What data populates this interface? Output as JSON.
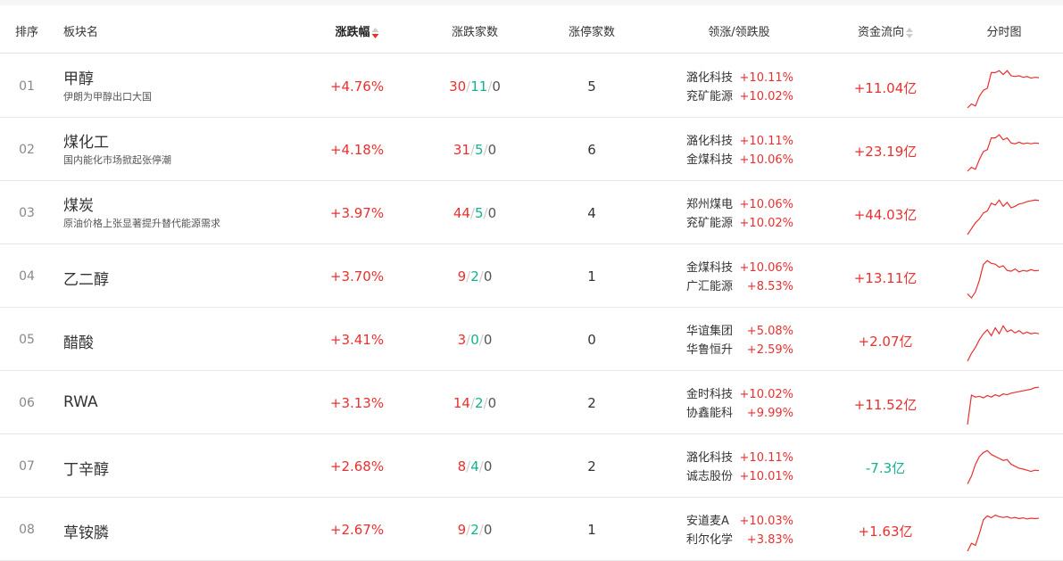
{
  "header": {
    "rank": "排序",
    "name": "板块名",
    "change": "涨跌幅",
    "updown": "涨跌家数",
    "limitup": "涨停家数",
    "leaders": "领涨/领跌股",
    "flow": "资金流向",
    "chart": "分时图"
  },
  "colors": {
    "up": "#e93030",
    "down": "#13b28f"
  },
  "rows": [
    {
      "rank": "01",
      "name": "甲醇",
      "desc": "伊朗为甲醇出口大国",
      "change": "+4.76%",
      "up": "30",
      "down": "11",
      "flat": "0",
      "limitup": "5",
      "leaders": [
        {
          "name": "潞化科技",
          "pct": "+10.11%"
        },
        {
          "name": "兖矿能源",
          "pct": "+10.02%"
        }
      ],
      "flow": "+11.04亿",
      "flow_dir": "up",
      "spark": [
        0,
        0.1,
        0.05,
        0.3,
        0.45,
        0.5,
        0.9,
        0.9,
        0.95,
        0.85,
        0.95,
        0.82,
        0.8,
        0.82,
        0.78,
        0.8,
        0.76,
        0.78,
        0.77
      ]
    },
    {
      "rank": "02",
      "name": "煤化工",
      "desc": "国内能化市场掀起张停潮",
      "change": "+4.18%",
      "up": "31",
      "down": "5",
      "flat": "0",
      "limitup": "6",
      "leaders": [
        {
          "name": "潞化科技",
          "pct": "+10.11%"
        },
        {
          "name": "金煤科技",
          "pct": "+10.06%"
        }
      ],
      "flow": "+23.19亿",
      "flow_dir": "up",
      "spark": [
        0,
        0.1,
        0.05,
        0.3,
        0.5,
        0.55,
        0.85,
        0.85,
        0.93,
        0.8,
        0.85,
        0.72,
        0.7,
        0.74,
        0.7,
        0.72,
        0.7,
        0.72,
        0.71
      ]
    },
    {
      "rank": "03",
      "name": "煤炭",
      "desc": "原油价格上张显著提升替代能源需求",
      "change": "+3.97%",
      "up": "44",
      "down": "5",
      "flat": "0",
      "limitup": "4",
      "leaders": [
        {
          "name": "郑州煤电",
          "pct": "+10.06%"
        },
        {
          "name": "兖矿能源",
          "pct": "+10.02%"
        }
      ],
      "flow": "+44.03亿",
      "flow_dir": "up",
      "spark": [
        0,
        0.15,
        0.3,
        0.4,
        0.55,
        0.6,
        0.8,
        0.75,
        0.88,
        0.72,
        0.82,
        0.68,
        0.72,
        0.78,
        0.8,
        0.84,
        0.86,
        0.88,
        0.87
      ]
    },
    {
      "rank": "04",
      "name": "乙二醇",
      "desc": "",
      "change": "+3.70%",
      "up": "9",
      "down": "2",
      "flat": "0",
      "limitup": "1",
      "leaders": [
        {
          "name": "金煤科技",
          "pct": "+10.06%"
        },
        {
          "name": "广汇能源",
          "pct": "+8.53%"
        }
      ],
      "flow": "+13.11亿",
      "flow_dir": "up",
      "spark": [
        0.1,
        0,
        0.15,
        0.45,
        0.85,
        0.95,
        0.88,
        0.86,
        0.78,
        0.82,
        0.7,
        0.68,
        0.74,
        0.66,
        0.7,
        0.68,
        0.72,
        0.69,
        0.7
      ]
    },
    {
      "rank": "05",
      "name": "醋酸",
      "desc": "",
      "change": "+3.41%",
      "up": "3",
      "down": "0",
      "flat": "0",
      "limitup": "0",
      "leaders": [
        {
          "name": "华谊集团",
          "pct": "+5.08%"
        },
        {
          "name": "华鲁恒升",
          "pct": "+2.59%"
        }
      ],
      "flow": "+2.07亿",
      "flow_dir": "up",
      "spark": [
        0,
        0.2,
        0.35,
        0.55,
        0.7,
        0.8,
        0.65,
        0.85,
        0.7,
        0.9,
        0.75,
        0.8,
        0.72,
        0.78,
        0.7,
        0.74,
        0.7,
        0.72,
        0.7
      ]
    },
    {
      "rank": "06",
      "name": "RWA",
      "desc": "",
      "change": "+3.13%",
      "up": "14",
      "down": "2",
      "flat": "0",
      "limitup": "2",
      "leaders": [
        {
          "name": "金时科技",
          "pct": "+10.02%"
        },
        {
          "name": "协鑫能科",
          "pct": "+9.99%"
        }
      ],
      "flow": "+11.52亿",
      "flow_dir": "up",
      "spark": [
        0,
        0.75,
        0.7,
        0.72,
        0.68,
        0.74,
        0.7,
        0.76,
        0.72,
        0.78,
        0.76,
        0.8,
        0.82,
        0.84,
        0.86,
        0.88,
        0.9,
        0.94,
        0.95
      ]
    },
    {
      "rank": "07",
      "name": "丁辛醇",
      "desc": "",
      "change": "+2.68%",
      "up": "8",
      "down": "4",
      "flat": "0",
      "limitup": "2",
      "leaders": [
        {
          "name": "潞化科技",
          "pct": "+10.11%"
        },
        {
          "name": "诚志股份",
          "pct": "+10.01%"
        }
      ],
      "flow": "-7.3亿",
      "flow_dir": "down",
      "spark": [
        0.1,
        0.3,
        0.6,
        0.8,
        0.9,
        0.95,
        0.85,
        0.8,
        0.75,
        0.7,
        0.72,
        0.6,
        0.55,
        0.5,
        0.48,
        0.45,
        0.42,
        0.45,
        0.44
      ]
    },
    {
      "rank": "08",
      "name": "草铵膦",
      "desc": "",
      "change": "+2.67%",
      "up": "9",
      "down": "2",
      "flat": "0",
      "limitup": "1",
      "leaders": [
        {
          "name": "安道麦A",
          "pct": "+10.03%"
        },
        {
          "name": "利尔化学",
          "pct": "+3.83%"
        }
      ],
      "flow": "+1.63亿",
      "flow_dir": "up",
      "spark": [
        0,
        0.2,
        0.15,
        0.45,
        0.8,
        0.9,
        0.85,
        0.92,
        0.88,
        0.86,
        0.88,
        0.84,
        0.86,
        0.83,
        0.85,
        0.82,
        0.84,
        0.83,
        0.84
      ]
    }
  ]
}
